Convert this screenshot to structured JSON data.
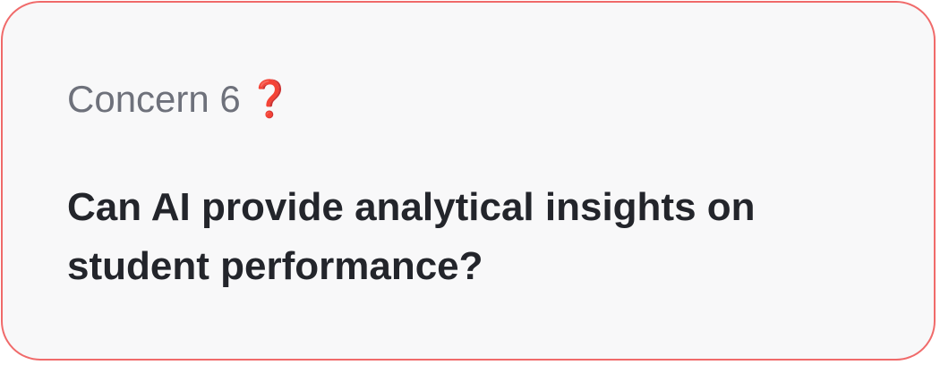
{
  "card": {
    "eyebrow_label": "Concern 6",
    "eyebrow_icon": "❓",
    "question": "Can AI provide analytical insights on student performance?"
  },
  "colors": {
    "card_border": "#f06a6a",
    "card_background": "#f8f8f9",
    "eyebrow_text": "#6e717b",
    "question_text": "#23252b",
    "question_icon": "#e00000"
  },
  "icons": {
    "question_mark": "question-mark-icon"
  }
}
